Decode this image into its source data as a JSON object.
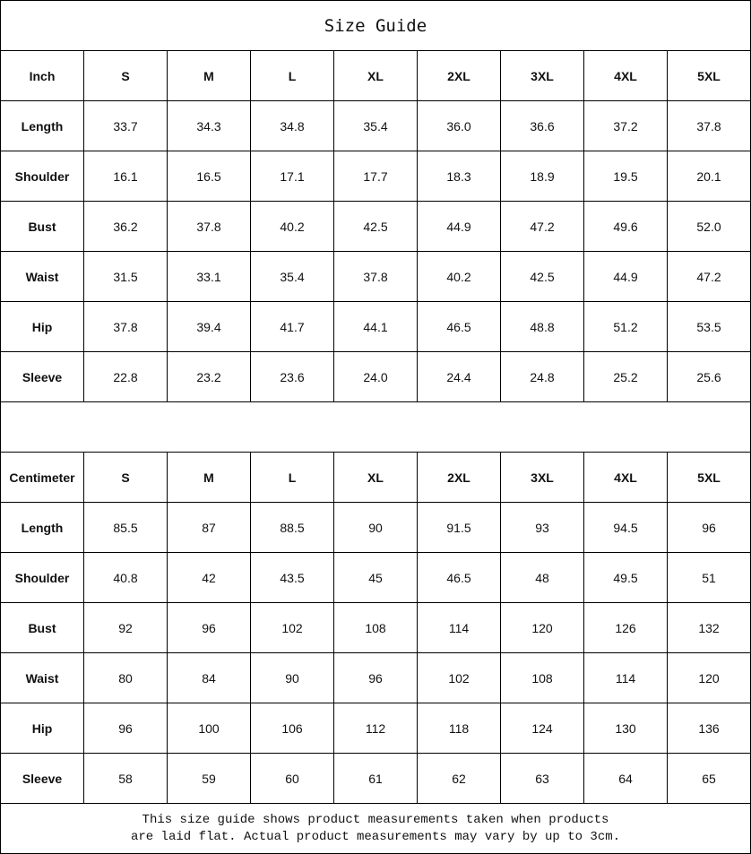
{
  "title": "Size Guide",
  "sizes": [
    "S",
    "M",
    "L",
    "XL",
    "2XL",
    "3XL",
    "4XL",
    "5XL"
  ],
  "tables": [
    {
      "unit": "Inch",
      "rows": [
        {
          "label": "Length",
          "values": [
            "33.7",
            "34.3",
            "34.8",
            "35.4",
            "36.0",
            "36.6",
            "37.2",
            "37.8"
          ]
        },
        {
          "label": "Shoulder",
          "values": [
            "16.1",
            "16.5",
            "17.1",
            "17.7",
            "18.3",
            "18.9",
            "19.5",
            "20.1"
          ]
        },
        {
          "label": "Bust",
          "values": [
            "36.2",
            "37.8",
            "40.2",
            "42.5",
            "44.9",
            "47.2",
            "49.6",
            "52.0"
          ]
        },
        {
          "label": "Waist",
          "values": [
            "31.5",
            "33.1",
            "35.4",
            "37.8",
            "40.2",
            "42.5",
            "44.9",
            "47.2"
          ]
        },
        {
          "label": "Hip",
          "values": [
            "37.8",
            "39.4",
            "41.7",
            "44.1",
            "46.5",
            "48.8",
            "51.2",
            "53.5"
          ]
        },
        {
          "label": "Sleeve",
          "values": [
            "22.8",
            "23.2",
            "23.6",
            "24.0",
            "24.4",
            "24.8",
            "25.2",
            "25.6"
          ]
        }
      ]
    },
    {
      "unit": "Centimeter",
      "rows": [
        {
          "label": "Length",
          "values": [
            "85.5",
            "87",
            "88.5",
            "90",
            "91.5",
            "93",
            "94.5",
            "96"
          ]
        },
        {
          "label": "Shoulder",
          "values": [
            "40.8",
            "42",
            "43.5",
            "45",
            "46.5",
            "48",
            "49.5",
            "51"
          ]
        },
        {
          "label": "Bust",
          "values": [
            "92",
            "96",
            "102",
            "108",
            "114",
            "120",
            "126",
            "132"
          ]
        },
        {
          "label": "Waist",
          "values": [
            "80",
            "84",
            "90",
            "96",
            "102",
            "108",
            "114",
            "120"
          ]
        },
        {
          "label": "Hip",
          "values": [
            "96",
            "100",
            "106",
            "112",
            "118",
            "124",
            "130",
            "136"
          ]
        },
        {
          "label": "Sleeve",
          "values": [
            "58",
            "59",
            "60",
            "61",
            "62",
            "63",
            "64",
            "65"
          ]
        }
      ]
    }
  ],
  "note": {
    "line1": "This size guide shows product measurements taken when products",
    "line2": "are laid flat. Actual product measurements may vary by up to 3cm."
  }
}
